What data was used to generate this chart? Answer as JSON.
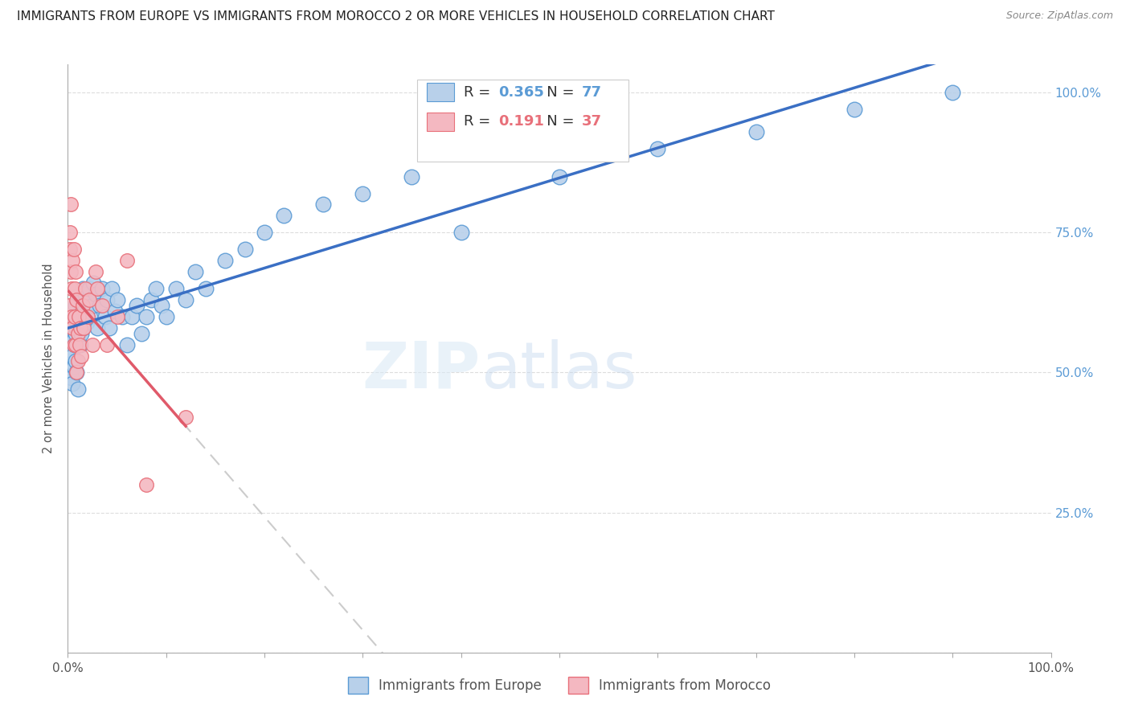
{
  "title": "IMMIGRANTS FROM EUROPE VS IMMIGRANTS FROM MOROCCO 2 OR MORE VEHICLES IN HOUSEHOLD CORRELATION CHART",
  "source": "Source: ZipAtlas.com",
  "ylabel": "2 or more Vehicles in Household",
  "europe_R": 0.365,
  "europe_N": 77,
  "morocco_R": 0.191,
  "morocco_N": 37,
  "europe_color": "#b8d0ea",
  "europe_edge": "#5b9bd5",
  "morocco_color": "#f4b8c1",
  "morocco_edge": "#e8707a",
  "europe_line_color": "#3a6fc4",
  "morocco_line_color": "#e05a6a",
  "background_color": "#ffffff",
  "grid_color": "#dddddd",
  "right_axis_color": "#5b9bd5",
  "europe_x": [
    0.002,
    0.003,
    0.003,
    0.004,
    0.004,
    0.005,
    0.005,
    0.005,
    0.006,
    0.006,
    0.007,
    0.007,
    0.008,
    0.008,
    0.008,
    0.009,
    0.009,
    0.01,
    0.01,
    0.01,
    0.011,
    0.011,
    0.012,
    0.012,
    0.013,
    0.013,
    0.014,
    0.014,
    0.015,
    0.015,
    0.016,
    0.017,
    0.018,
    0.019,
    0.02,
    0.021,
    0.022,
    0.023,
    0.025,
    0.026,
    0.028,
    0.03,
    0.032,
    0.035,
    0.038,
    0.04,
    0.042,
    0.045,
    0.048,
    0.05,
    0.055,
    0.06,
    0.065,
    0.07,
    0.075,
    0.08,
    0.085,
    0.09,
    0.095,
    0.1,
    0.11,
    0.12,
    0.13,
    0.14,
    0.16,
    0.18,
    0.2,
    0.22,
    0.26,
    0.3,
    0.35,
    0.4,
    0.5,
    0.6,
    0.7,
    0.8,
    0.9
  ],
  "europe_y": [
    0.56,
    0.5,
    0.52,
    0.54,
    0.49,
    0.58,
    0.53,
    0.48,
    0.56,
    0.51,
    0.55,
    0.6,
    0.57,
    0.52,
    0.62,
    0.5,
    0.58,
    0.55,
    0.6,
    0.47,
    0.63,
    0.57,
    0.59,
    0.64,
    0.55,
    0.61,
    0.57,
    0.63,
    0.58,
    0.65,
    0.6,
    0.62,
    0.64,
    0.59,
    0.61,
    0.63,
    0.65,
    0.6,
    0.62,
    0.66,
    0.64,
    0.58,
    0.62,
    0.65,
    0.6,
    0.63,
    0.58,
    0.65,
    0.61,
    0.63,
    0.6,
    0.55,
    0.6,
    0.62,
    0.57,
    0.6,
    0.63,
    0.65,
    0.62,
    0.6,
    0.65,
    0.63,
    0.68,
    0.65,
    0.7,
    0.72,
    0.75,
    0.78,
    0.8,
    0.82,
    0.85,
    0.75,
    0.85,
    0.9,
    0.93,
    0.97,
    1.0
  ],
  "morocco_x": [
    0.001,
    0.002,
    0.002,
    0.003,
    0.003,
    0.004,
    0.004,
    0.005,
    0.005,
    0.006,
    0.006,
    0.007,
    0.007,
    0.008,
    0.008,
    0.009,
    0.009,
    0.01,
    0.01,
    0.011,
    0.012,
    0.013,
    0.014,
    0.015,
    0.016,
    0.018,
    0.02,
    0.022,
    0.025,
    0.028,
    0.03,
    0.035,
    0.04,
    0.05,
    0.06,
    0.08,
    0.12
  ],
  "morocco_y": [
    0.62,
    0.75,
    0.72,
    0.8,
    0.68,
    0.65,
    0.6,
    0.7,
    0.58,
    0.72,
    0.55,
    0.65,
    0.6,
    0.55,
    0.68,
    0.5,
    0.63,
    0.57,
    0.52,
    0.6,
    0.55,
    0.58,
    0.53,
    0.62,
    0.58,
    0.65,
    0.6,
    0.63,
    0.55,
    0.68,
    0.65,
    0.62,
    0.55,
    0.6,
    0.7,
    0.3,
    0.42
  ],
  "xlim": [
    0.0,
    1.0
  ],
  "ylim": [
    0.0,
    1.05
  ],
  "yticks": [
    0.0,
    0.25,
    0.5,
    0.75,
    1.0
  ],
  "ytick_right_labels": [
    "",
    "25.0%",
    "50.0%",
    "75.0%",
    "100.0%"
  ],
  "xtick_positions": [
    0.0,
    0.1,
    0.2,
    0.3,
    0.4,
    0.5,
    0.6,
    0.7,
    0.8,
    0.9,
    1.0
  ],
  "xtick_labels": [
    "0.0%",
    "",
    "",
    "",
    "",
    "",
    "",
    "",
    "",
    "",
    "100.0%"
  ]
}
